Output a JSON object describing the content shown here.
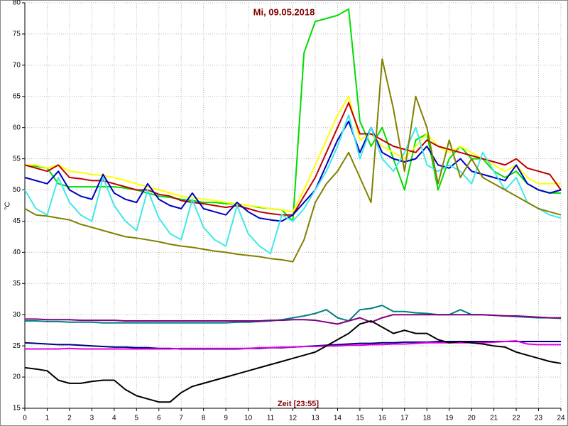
{
  "chart_data": {
    "type": "line",
    "title": "Mi, 09.05.2018",
    "y_label": "°C",
    "x_label": "Zeit [23:55]",
    "grid": true,
    "xlim": [
      0,
      24
    ],
    "ylim": [
      15,
      80
    ],
    "xticks": [
      0,
      1,
      2,
      3,
      4,
      5,
      6,
      7,
      8,
      9,
      10,
      11,
      12,
      13,
      14,
      15,
      16,
      17,
      18,
      19,
      20,
      21,
      22,
      23,
      24
    ],
    "yticks": [
      15,
      20,
      25,
      30,
      35,
      40,
      45,
      50,
      55,
      60,
      65,
      70,
      75,
      80
    ],
    "x": [
      0,
      0.5,
      1,
      1.5,
      2,
      2.5,
      3,
      3.5,
      4,
      4.5,
      5,
      5.5,
      6,
      6.5,
      7,
      7.5,
      8,
      8.5,
      9,
      9.5,
      10,
      10.5,
      11,
      11.5,
      12,
      12.5,
      13,
      13.5,
      14,
      14.5,
      15,
      15.5,
      16,
      16.5,
      17,
      17.5,
      18,
      18.5,
      19,
      19.5,
      20,
      20.5,
      21,
      21.5,
      22,
      22.5,
      23,
      23.5,
      24
    ],
    "series": [
      {
        "color": "#00dd00",
        "values": [
          54,
          53.8,
          53.5,
          51,
          50.5,
          50.5,
          50.5,
          50.5,
          50.5,
          50.3,
          50,
          49.5,
          49,
          48.8,
          48.5,
          48.3,
          48,
          48,
          47.8,
          47.8,
          47.5,
          47.2,
          47,
          46.8,
          45,
          72,
          77,
          77.5,
          78,
          79,
          61,
          57,
          60,
          55,
          50,
          58,
          59,
          50,
          55,
          57,
          55,
          55,
          53,
          52,
          53,
          51,
          50,
          49.5,
          49.5
        ]
      },
      {
        "color": "#ffff00",
        "values": [
          54,
          54,
          53.5,
          54,
          53,
          52.8,
          52.5,
          52.3,
          52,
          51.5,
          51,
          50.5,
          50,
          49.5,
          49,
          48.8,
          48.5,
          48.3,
          48,
          47.8,
          47.5,
          47.3,
          47,
          46.8,
          46.5,
          50,
          54,
          58,
          62,
          65,
          58,
          59,
          57,
          56,
          55,
          57,
          59,
          57,
          56,
          57,
          56,
          55,
          54,
          53,
          54,
          52,
          51,
          51,
          51
        ]
      },
      {
        "color": "#c00000",
        "values": [
          54,
          53.5,
          53,
          54,
          52,
          51.8,
          51.5,
          51.5,
          51,
          50.5,
          50,
          50,
          49.3,
          49,
          48.3,
          48,
          47.8,
          47.5,
          47.2,
          47.5,
          47,
          46.5,
          46.2,
          46,
          46,
          49,
          52,
          56,
          60,
          64,
          59,
          59,
          58,
          57,
          56.5,
          56,
          58,
          57,
          56.5,
          56,
          55.5,
          55,
          54.5,
          54,
          55,
          53.5,
          53,
          52.5,
          50
        ]
      },
      {
        "color": "#0000c0",
        "values": [
          52,
          51.5,
          51,
          53,
          50,
          49,
          48.5,
          52.5,
          49.5,
          48.5,
          48,
          51,
          48.5,
          47.5,
          47,
          49.5,
          47,
          46.5,
          46,
          48,
          46.5,
          45.5,
          45.2,
          45,
          46,
          48,
          50,
          54,
          58,
          61,
          56,
          60,
          56,
          55,
          54.5,
          55,
          57,
          54,
          53.5,
          55,
          53,
          52.5,
          52,
          51.5,
          54,
          51,
          50,
          49.5,
          50
        ]
      },
      {
        "color": "#40e8e8",
        "values": [
          50,
          47,
          46,
          52,
          48,
          46,
          45,
          52,
          47.5,
          45,
          43.5,
          50,
          45.5,
          43,
          42,
          48.5,
          44,
          42,
          41,
          47.5,
          43,
          41,
          39.8,
          46,
          45,
          47,
          50,
          53,
          57,
          62,
          55,
          60,
          55,
          53,
          56,
          60,
          54,
          53,
          54,
          53,
          51,
          56,
          53,
          50,
          52,
          48,
          47,
          46,
          45.5
        ]
      },
      {
        "color": "#808000",
        "values": [
          47,
          46,
          45.8,
          45.5,
          45.2,
          44.5,
          44,
          43.5,
          43,
          42.5,
          42.3,
          42,
          41.7,
          41.3,
          41,
          40.8,
          40.5,
          40.2,
          40,
          39.7,
          39.5,
          39.3,
          39,
          38.8,
          38.5,
          42,
          48,
          51,
          53,
          56,
          52,
          48,
          71,
          63,
          53,
          65,
          60,
          51,
          58,
          52,
          55,
          52,
          51,
          50,
          49,
          48,
          47,
          46.5,
          46
        ]
      },
      {
        "color": "#008080",
        "values": [
          29,
          29,
          28.9,
          28.9,
          28.8,
          28.8,
          28.8,
          28.7,
          28.7,
          28.7,
          28.7,
          28.7,
          28.7,
          28.7,
          28.7,
          28.7,
          28.7,
          28.7,
          28.7,
          28.8,
          28.8,
          28.9,
          29,
          29.2,
          29.5,
          29.8,
          30.2,
          30.8,
          29.5,
          29,
          30.8,
          31,
          31.5,
          30.5,
          30.5,
          30.3,
          30.2,
          30,
          30,
          30.8,
          30,
          30,
          29.9,
          29.8,
          29.7,
          29.6,
          29.5,
          29.5,
          29.4
        ]
      },
      {
        "color": "#800080",
        "values": [
          29.3,
          29.3,
          29.2,
          29.2,
          29.2,
          29.1,
          29.1,
          29.1,
          29.1,
          29,
          29,
          29,
          29,
          29,
          29,
          29,
          29,
          29,
          29,
          29,
          29,
          29,
          29.1,
          29.1,
          29.2,
          29.2,
          29.1,
          28.8,
          28.5,
          29,
          29.5,
          28.8,
          29.5,
          30,
          30,
          30,
          30,
          30,
          30,
          30,
          30,
          30,
          29.9,
          29.8,
          29.8,
          29.7,
          29.6,
          29.5,
          29.5
        ]
      },
      {
        "color": "#000080",
        "values": [
          25.5,
          25.4,
          25.3,
          25.2,
          25.2,
          25.1,
          25,
          24.9,
          24.8,
          24.8,
          24.7,
          24.7,
          24.6,
          24.6,
          24.5,
          24.5,
          24.5,
          24.5,
          24.5,
          24.5,
          24.6,
          24.6,
          24.7,
          24.7,
          24.8,
          24.9,
          25,
          25.1,
          25.2,
          25.3,
          25.4,
          25.4,
          25.5,
          25.5,
          25.6,
          25.6,
          25.6,
          25.7,
          25.7,
          25.7,
          25.7,
          25.7,
          25.7,
          25.7,
          25.7,
          25.7,
          25.7,
          25.7,
          25.7
        ]
      },
      {
        "color": "#e000e0",
        "values": [
          24.5,
          24.5,
          24.5,
          24.5,
          24.6,
          24.5,
          24.5,
          24.5,
          24.5,
          24.5,
          24.5,
          24.5,
          24.5,
          24.5,
          24.6,
          24.6,
          24.6,
          24.6,
          24.6,
          24.6,
          24.6,
          24.7,
          24.7,
          24.8,
          24.8,
          24.9,
          24.9,
          25,
          25,
          25.1,
          25.1,
          25.2,
          25.2,
          25.3,
          25.3,
          25.4,
          25.5,
          25.5,
          25.5,
          25.5,
          25.5,
          25.5,
          25.6,
          25.7,
          25.8,
          25.3,
          25.2,
          25.2,
          25.2
        ]
      },
      {
        "color": "#000000",
        "values": [
          21.5,
          21.3,
          21,
          19.5,
          19,
          19,
          19.3,
          19.5,
          19.5,
          18,
          17,
          16.5,
          16,
          16,
          17.5,
          18.5,
          19,
          19.5,
          20,
          20.5,
          21,
          21.5,
          22,
          22.5,
          23,
          23.5,
          24,
          25,
          26,
          27,
          28.5,
          29,
          28,
          27,
          27.5,
          27,
          27,
          26,
          25.5,
          25.7,
          25.5,
          25.3,
          25,
          24.8,
          24,
          23.5,
          23,
          22.5,
          22.2
        ]
      }
    ]
  }
}
